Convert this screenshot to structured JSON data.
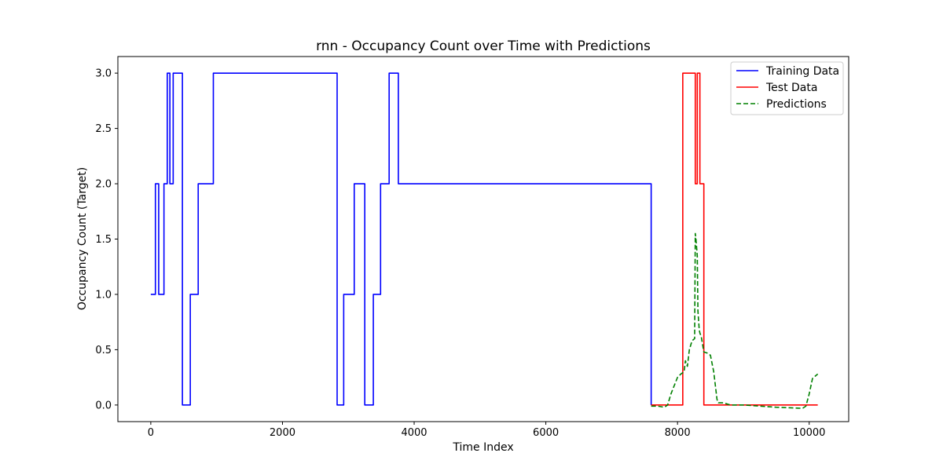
{
  "chart_data": {
    "type": "line",
    "title": "rnn - Occupancy Count over Time with Predictions",
    "xlabel": "Time Index",
    "ylabel": "Occupancy Count (Target)",
    "xlim": [
      -500,
      10600
    ],
    "ylim": [
      -0.15,
      3.15
    ],
    "xticks": [
      0,
      2000,
      4000,
      6000,
      8000,
      10000
    ],
    "yticks": [
      0.0,
      0.5,
      1.0,
      1.5,
      2.0,
      2.5,
      3.0
    ],
    "xtick_labels": [
      "0",
      "2000",
      "4000",
      "6000",
      "8000",
      "10000"
    ],
    "ytick_labels": [
      "0.0",
      "0.5",
      "1.0",
      "1.5",
      "2.0",
      "2.5",
      "3.0"
    ],
    "grid": false,
    "legend_position": "top-right",
    "series": [
      {
        "name": "Training Data",
        "color": "#0000ff",
        "style": "solid",
        "step": true,
        "x": [
          0,
          70,
          120,
          200,
          250,
          290,
          340,
          480,
          600,
          720,
          950,
          2830,
          2930,
          3090,
          3250,
          3380,
          3490,
          3620,
          3760,
          7600
        ],
        "y": [
          1,
          2,
          1,
          2,
          3,
          2,
          3,
          0,
          1,
          2,
          3,
          0,
          1,
          2,
          0,
          1,
          2,
          3,
          2,
          0
        ]
      },
      {
        "name": "Test Data",
        "color": "#ff0000",
        "style": "solid",
        "step": true,
        "x": [
          7600,
          8080,
          8270,
          8300,
          8340,
          8400,
          10130
        ],
        "y": [
          0,
          3,
          2,
          3,
          2,
          0,
          0
        ]
      },
      {
        "name": "Predictions",
        "color": "#008000",
        "style": "dashed",
        "step": false,
        "x": [
          7600,
          7700,
          7800,
          7850,
          7900,
          8000,
          8050,
          8100,
          8120,
          8150,
          8180,
          8220,
          8260,
          8270,
          8280,
          8300,
          8310,
          8330,
          8340,
          8360,
          8380,
          8400,
          8450,
          8500,
          8550,
          8580,
          8600,
          8620,
          8700,
          8800,
          9000,
          9500,
          9900,
          9950,
          10000,
          10050,
          10130
        ],
        "y": [
          -0.01,
          -0.01,
          -0.02,
          0.0,
          0.1,
          0.25,
          0.28,
          0.3,
          0.4,
          0.35,
          0.5,
          0.58,
          0.6,
          1.55,
          1.5,
          1.35,
          0.85,
          0.68,
          0.65,
          0.62,
          0.55,
          0.48,
          0.47,
          0.45,
          0.3,
          0.15,
          0.05,
          0.02,
          0.02,
          0.0,
          0.0,
          -0.02,
          -0.03,
          -0.01,
          0.1,
          0.24,
          0.28
        ]
      }
    ]
  }
}
